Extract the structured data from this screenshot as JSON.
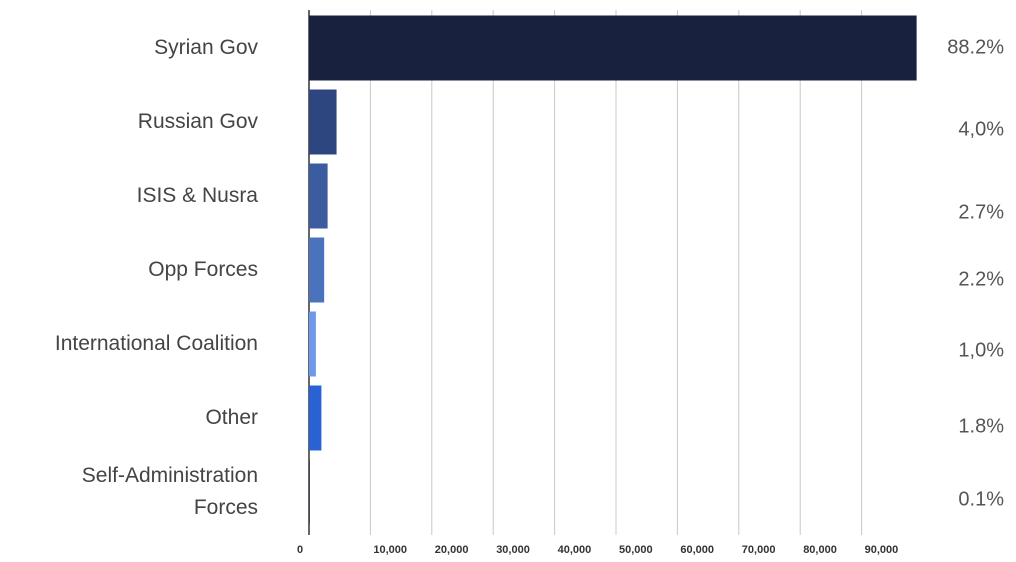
{
  "chart_data": {
    "type": "bar",
    "orientation": "horizontal",
    "categories": [
      "Syrian Gov",
      "Russian Gov",
      "ISIS & Nusra",
      "Opp Forces",
      "International Coalition",
      "Other",
      "Self-Administration Forces"
    ],
    "values": [
      98960,
      4490,
      3030,
      2470,
      1120,
      2020,
      110
    ],
    "value_labels": [
      "88.2%",
      "4,0%",
      "2.7%",
      "2.2%",
      "1,0%",
      "1.8%",
      "0.1%"
    ],
    "colors": [
      "#18223f",
      "#2d4680",
      "#3b5c9e",
      "#4a72bd",
      "#6f98ea",
      "#2a62d4",
      "#18223f"
    ],
    "xlim": [
      0,
      100000
    ],
    "xticks": [
      0,
      {
        "value": 10000,
        "label": "10,000"
      },
      {
        "value": 20000,
        "label": "20,000"
      },
      {
        "value": 30000,
        "label": "30,000"
      },
      {
        "value": 40000,
        "label": "40,000"
      },
      {
        "value": 50000,
        "label": "50,000"
      },
      {
        "value": 60000,
        "label": "60,000"
      },
      {
        "value": 70000,
        "label": "70,000"
      },
      {
        "value": 80000,
        "label": "80,000"
      },
      {
        "value": 90000,
        "label": "90,000"
      }
    ],
    "grid": true
  }
}
